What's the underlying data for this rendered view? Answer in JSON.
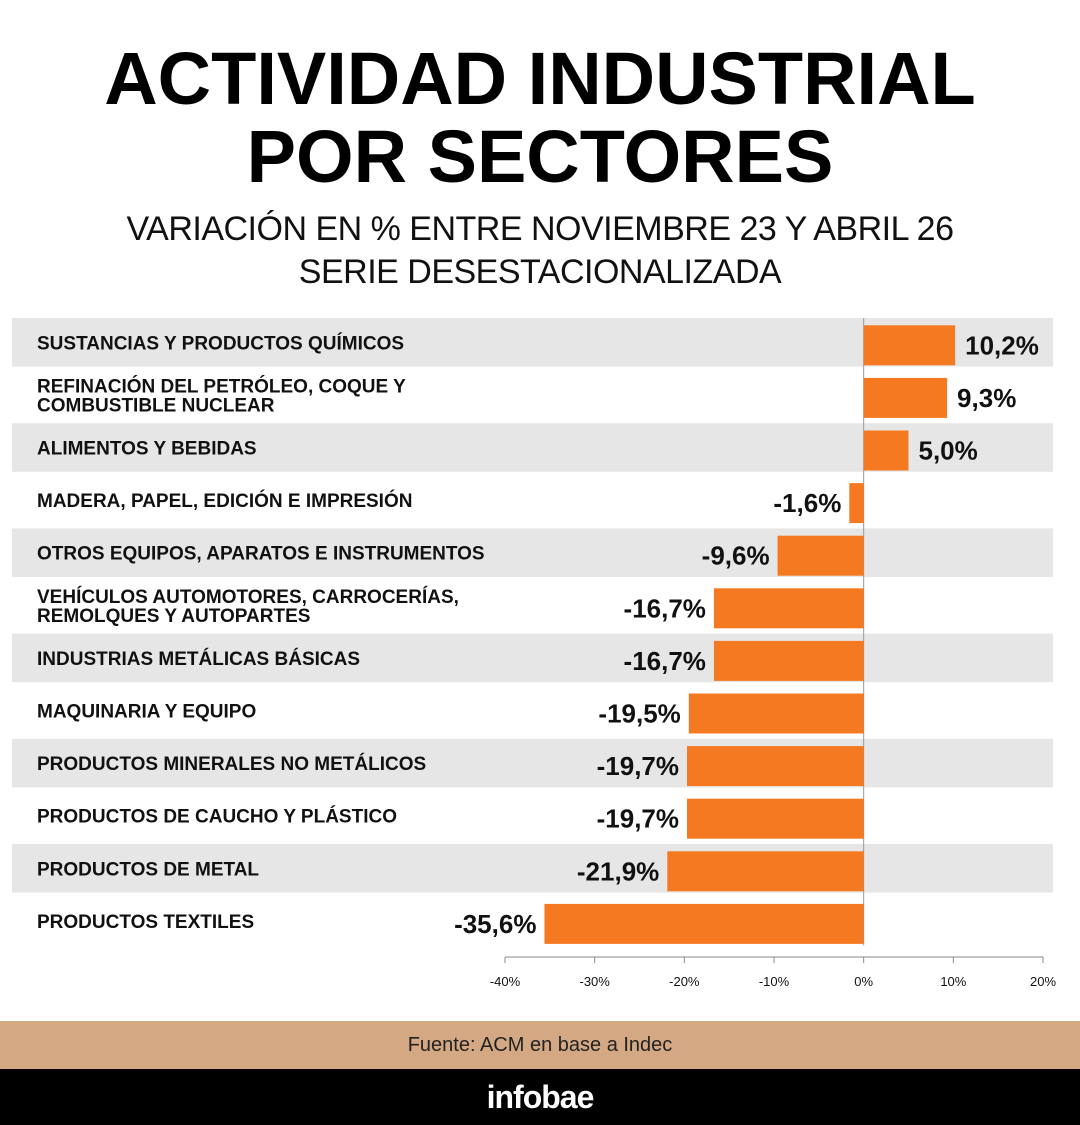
{
  "header": {
    "title_line1": "ACTIVIDAD INDUSTRIAL",
    "title_line2": "POR SECTORES",
    "subtitle_line1": "VARIACIÓN EN % ENTRE NOVIEMBRE 23 Y ABRIL 26",
    "subtitle_line2": "SERIE DESESTACIONALIZADA"
  },
  "chart_data": {
    "type": "bar",
    "orientation": "horizontal",
    "categories": [
      [
        "SUSTANCIAS Y PRODUCTOS QUÍMICOS"
      ],
      [
        "REFINACIÓN DEL PETRÓLEO, COQUE Y",
        "COMBUSTIBLE NUCLEAR"
      ],
      [
        "ALIMENTOS Y BEBIDAS"
      ],
      [
        "MADERA, PAPEL, EDICIÓN E IMPRESIÓN"
      ],
      [
        "OTROS EQUIPOS, APARATOS E INSTRUMENTOS"
      ],
      [
        "VEHÍCULOS AUTOMOTORES, CARROCERÍAS,",
        "REMOLQUES Y AUTOPARTES"
      ],
      [
        "INDUSTRIAS METÁLICAS BÁSICAS"
      ],
      [
        "MAQUINARIA Y EQUIPO"
      ],
      [
        "PRODUCTOS MINERALES NO METÁLICOS"
      ],
      [
        "PRODUCTOS DE CAUCHO Y PLÁSTICO"
      ],
      [
        "PRODUCTOS DE METAL"
      ],
      [
        "PRODUCTOS TEXTILES"
      ]
    ],
    "values": [
      10.2,
      9.3,
      5.0,
      -1.6,
      -9.6,
      -16.7,
      -16.7,
      -19.5,
      -19.7,
      -19.7,
      -21.9,
      -35.6
    ],
    "value_labels": [
      "10,2%",
      "9,3%",
      "5,0%",
      "-1,6%",
      "-9,6%",
      "-16,7%",
      "-16,7%",
      "-19,5%",
      "-19,7%",
      "-19,7%",
      "-21,9%",
      "-35,6%"
    ],
    "xlim": [
      -40,
      20
    ],
    "ticks": [
      -40,
      -30,
      -20,
      -10,
      0,
      10,
      20
    ],
    "tick_labels": [
      "-40%",
      "-30%",
      "-20%",
      "-10%",
      "0%",
      "10%",
      "20%"
    ],
    "bar_color": "#f47920",
    "stripe_color": "#e6e6e6",
    "grid": false
  },
  "source": {
    "text": "Fuente: ACM en base a Indec"
  },
  "brand": {
    "logo_text": "infobae"
  },
  "colors": {
    "accent": "#f47920",
    "source_bg": "#d4a882",
    "footer_bg": "#000000"
  }
}
